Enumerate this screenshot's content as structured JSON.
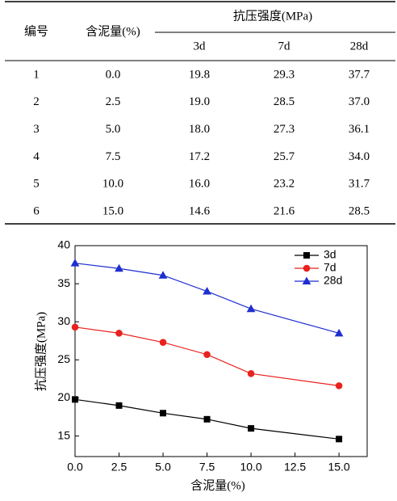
{
  "table": {
    "header": [
      "编号",
      "含泥量(%)",
      "抗压强度(MPa)"
    ],
    "subheader": [
      "3d",
      "7d",
      "28d"
    ],
    "rows": [
      [
        "1",
        "0.0",
        "19.8",
        "29.3",
        "37.7"
      ],
      [
        "2",
        "2.5",
        "19.0",
        "28.5",
        "37.0"
      ],
      [
        "3",
        "5.0",
        "18.0",
        "27.3",
        "36.1"
      ],
      [
        "4",
        "7.5",
        "17.2",
        "25.7",
        "34.0"
      ],
      [
        "5",
        "10.0",
        "16.0",
        "23.2",
        "31.7"
      ],
      [
        "6",
        "15.0",
        "14.6",
        "21.6",
        "28.5"
      ]
    ]
  },
  "chart_data": {
    "type": "line",
    "xlabel": "含泥量(%)",
    "ylabel": "抗压强度(MPa)",
    "x": [
      0,
      2.5,
      5,
      7.5,
      10,
      15
    ],
    "series": [
      {
        "name": "3d",
        "color": "#000000",
        "marker": "square",
        "values": [
          19.8,
          19.0,
          18.0,
          17.2,
          16.0,
          14.6
        ]
      },
      {
        "name": "7d",
        "color": "#e8221f",
        "marker": "circle",
        "values": [
          29.3,
          28.5,
          27.3,
          25.7,
          23.2,
          21.6
        ]
      },
      {
        "name": "28d",
        "color": "#1f2fd0",
        "marker": "triangle",
        "values": [
          37.7,
          37.0,
          36.1,
          34.0,
          31.7,
          28.5
        ]
      }
    ],
    "xlim": [
      0,
      16.6
    ],
    "ylim": [
      12.3,
      40
    ],
    "xticks": [
      {
        "value": 0,
        "label": "0.0"
      },
      {
        "value": 2.5,
        "label": "2.5"
      },
      {
        "value": 5,
        "label": "5.0"
      },
      {
        "value": 7.5,
        "label": "7.5"
      },
      {
        "value": 10,
        "label": "10.0"
      },
      {
        "value": 12.5,
        "label": "12.5"
      },
      {
        "value": 15,
        "label": "15.0"
      }
    ],
    "yticks": [
      15,
      20,
      25,
      30,
      35,
      40
    ],
    "legend": "upper-right"
  }
}
